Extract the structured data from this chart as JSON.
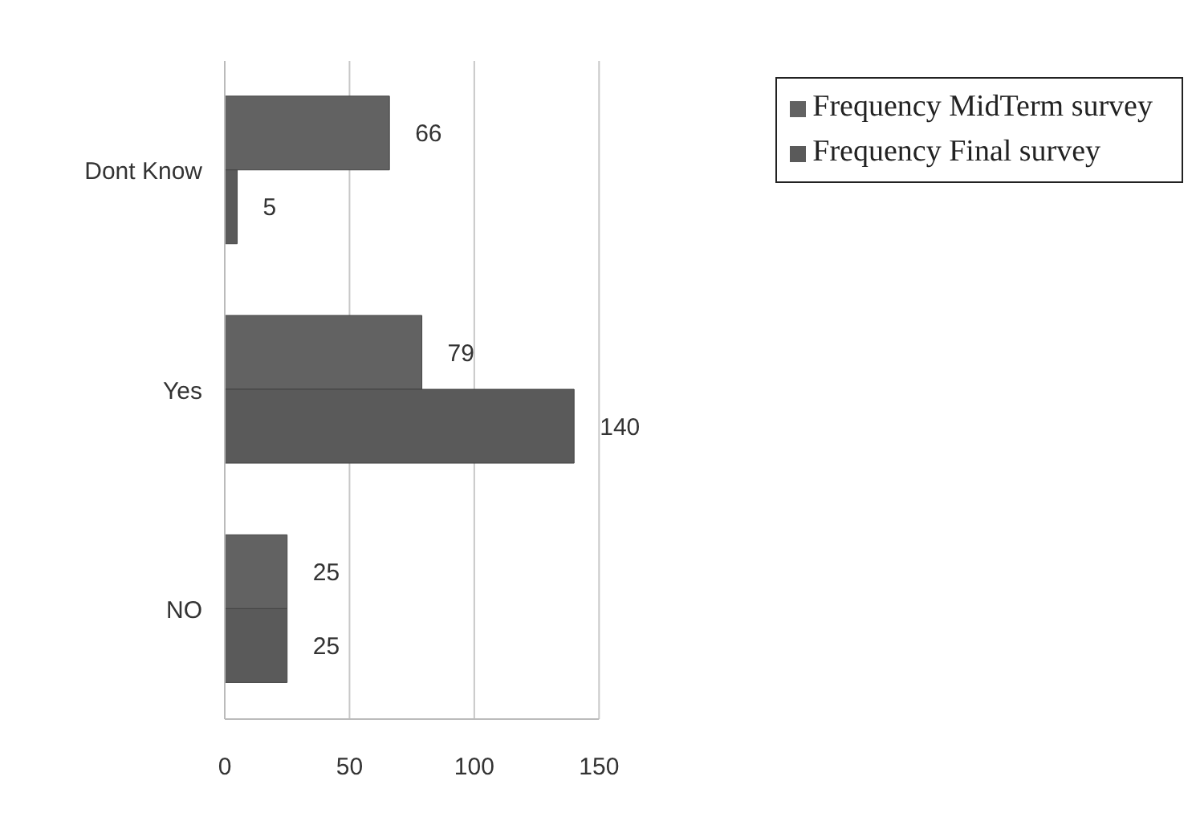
{
  "chart_data": {
    "type": "bar",
    "orientation": "horizontal",
    "categories": [
      "Dont Know",
      "Yes",
      "NO"
    ],
    "series": [
      {
        "name": "Frequency MidTerm survey",
        "color": "#626262",
        "values": [
          66,
          79,
          25
        ]
      },
      {
        "name": "Frequency Final survey",
        "color": "#5a5a5a",
        "values": [
          5,
          140,
          25
        ]
      }
    ],
    "xlim": [
      0,
      150
    ],
    "xticks": [
      0,
      50,
      100,
      150
    ],
    "grid": "x",
    "legend": "top right",
    "data_labels": true
  }
}
